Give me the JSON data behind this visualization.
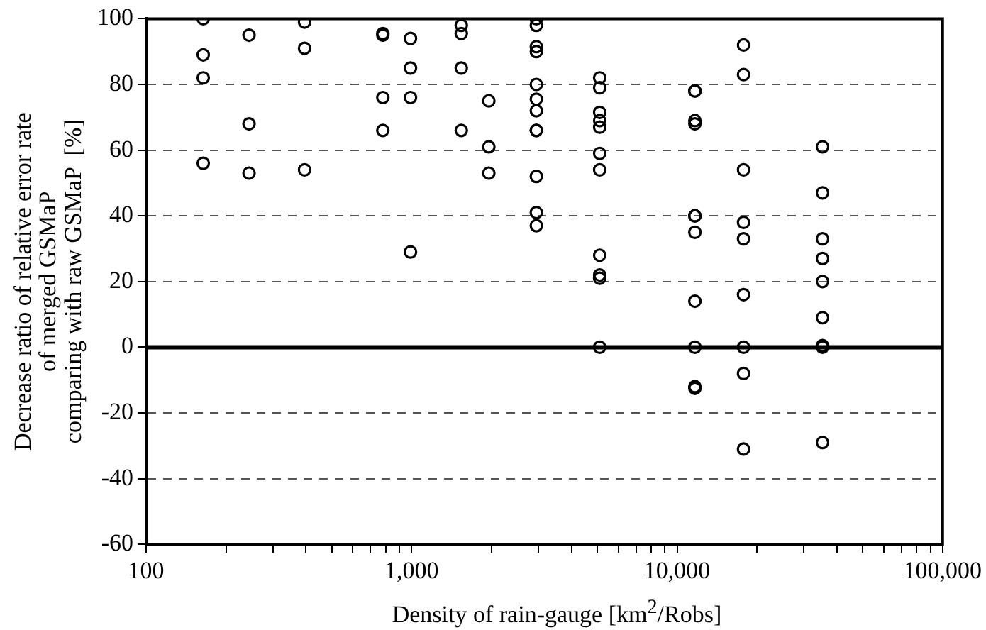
{
  "chart_data": {
    "type": "scatter",
    "xlabel": "Density of rain-gauge [km$^{2}$/Robs]",
    "ylabel": "Decrease ratio of relative error rate\nof merged GSMaP\ncomparing with raw GSMaP  [%]",
    "log": "x",
    "grid": "y",
    "marker": "circle",
    "legend": false,
    "xlim": [
      100,
      100000
    ],
    "ylim": [
      -60,
      100
    ],
    "xticks": [
      {
        "value": 100,
        "label": "100"
      },
      {
        "value": 200,
        "label": null
      },
      {
        "value": 300,
        "label": null
      },
      {
        "value": 400,
        "label": null
      },
      {
        "value": 500,
        "label": null
      },
      {
        "value": 600,
        "label": null
      },
      {
        "value": 700,
        "label": null
      },
      {
        "value": 800,
        "label": null
      },
      {
        "value": 900,
        "label": null
      },
      {
        "value": 1000,
        "label": "1,000"
      },
      {
        "value": 2000,
        "label": null
      },
      {
        "value": 3000,
        "label": null
      },
      {
        "value": 4000,
        "label": null
      },
      {
        "value": 5000,
        "label": null
      },
      {
        "value": 6000,
        "label": null
      },
      {
        "value": 7000,
        "label": null
      },
      {
        "value": 8000,
        "label": null
      },
      {
        "value": 9000,
        "label": null
      },
      {
        "value": 10000,
        "label": "10,000"
      },
      {
        "value": 20000,
        "label": null
      },
      {
        "value": 30000,
        "label": null
      },
      {
        "value": 40000,
        "label": null
      },
      {
        "value": 50000,
        "label": null
      },
      {
        "value": 60000,
        "label": null
      },
      {
        "value": 70000,
        "label": null
      },
      {
        "value": 80000,
        "label": null
      },
      {
        "value": 90000,
        "label": null
      },
      {
        "value": 100000,
        "label": "100,000"
      }
    ],
    "yticks": [
      -60,
      -40,
      -20,
      0,
      20,
      40,
      60,
      80,
      100
    ],
    "ref_lines": [
      {
        "axis": "y",
        "value": 0,
        "color": "#000000",
        "line_style": "solid"
      }
    ],
    "series": [
      {
        "color": "#000000",
        "x": [
          164,
          164,
          164,
          164,
          244,
          244,
          244,
          395,
          395,
          395,
          779,
          779,
          779,
          779,
          990,
          990,
          990,
          990,
          1538,
          1538,
          1538,
          1538,
          1953,
          1953,
          1953,
          2950,
          2950,
          2950,
          2950,
          2950,
          2950,
          2950,
          2950,
          2950,
          2950,
          2950,
          2950,
          5110,
          5110,
          5110,
          5110,
          5110,
          5110,
          5110,
          5110,
          5110,
          5110,
          5110,
          11670,
          11670,
          11670,
          11670,
          11670,
          11670,
          11670,
          11670,
          11670,
          11670,
          11670,
          17800,
          17800,
          17800,
          17800,
          17800,
          17800,
          17800,
          17800,
          17800,
          35300,
          35300,
          35300,
          35300,
          35300,
          35300,
          35300,
          35300,
          35300
        ],
        "values": [
          100,
          89,
          82,
          56,
          95,
          68,
          53,
          99,
          91,
          54,
          95.5,
          95,
          76,
          66,
          94,
          85,
          76,
          29,
          98,
          95.5,
          85,
          66,
          75,
          61,
          53,
          100,
          98,
          91.5,
          90,
          80,
          75.5,
          72,
          66,
          66,
          52,
          41,
          37,
          82,
          79,
          71.5,
          69,
          67,
          59,
          54,
          28,
          22,
          21,
          0,
          78,
          78,
          69,
          68,
          40,
          40,
          35,
          14,
          0,
          -12,
          -12.5,
          92,
          83,
          54,
          38,
          33,
          16,
          0,
          -8,
          -31,
          61,
          47,
          33,
          27,
          20,
          9,
          0.5,
          0,
          -29
        ]
      }
    ]
  }
}
